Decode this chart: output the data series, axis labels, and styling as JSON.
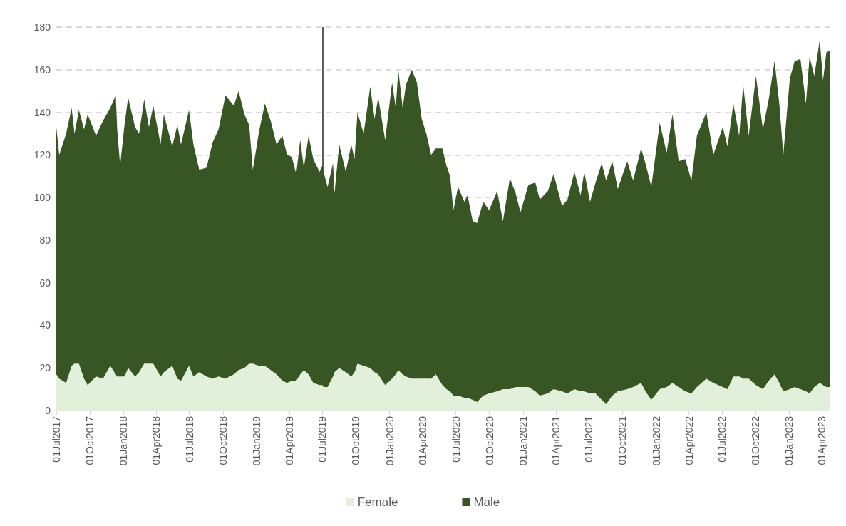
{
  "chart_data": {
    "type": "area",
    "stacked": true,
    "grid": "y",
    "legend": "bottom",
    "marker": "none",
    "x": [
      "2017-07-01",
      "2017-07-09",
      "2017-07-28",
      "2017-08-12",
      "2017-08-20",
      "2017-09-01",
      "2017-09-15",
      "2017-09-25",
      "2017-10-18",
      "2017-11-06",
      "2017-11-26",
      "2017-12-11",
      "2017-12-15",
      "2017-12-23",
      "2018-01-04",
      "2018-01-14",
      "2018-02-02",
      "2018-02-13",
      "2018-02-27",
      "2018-03-12",
      "2018-03-24",
      "2018-04-13",
      "2018-04-22",
      "2018-05-15",
      "2018-05-29",
      "2018-06-08",
      "2018-06-30",
      "2018-07-12",
      "2018-07-28",
      "2018-08-17",
      "2018-09-03",
      "2018-09-19",
      "2018-10-08",
      "2018-10-31",
      "2018-11-13",
      "2018-11-29",
      "2018-12-12",
      "2018-12-22",
      "2019-01-08",
      "2019-01-24",
      "2019-02-09",
      "2019-02-25",
      "2019-03-13",
      "2019-03-26",
      "2019-04-08",
      "2019-04-20",
      "2019-05-01",
      "2019-05-11",
      "2019-05-24",
      "2019-06-06",
      "2019-06-23",
      "2019-07-01",
      "2019-07-04",
      "2019-07-15",
      "2019-07-30",
      "2019-08-03",
      "2019-08-16",
      "2019-09-03",
      "2019-09-18",
      "2019-09-27",
      "2019-10-05",
      "2019-10-22",
      "2019-11-09",
      "2019-11-21",
      "2019-12-01",
      "2019-12-20",
      "2020-01-08",
      "2020-01-18",
      "2020-01-25",
      "2020-02-06",
      "2020-02-15",
      "2020-03-02",
      "2020-03-16",
      "2020-03-29",
      "2020-04-11",
      "2020-04-24",
      "2020-05-07",
      "2020-05-25",
      "2020-06-05",
      "2020-06-15",
      "2020-06-24",
      "2020-07-07",
      "2020-07-24",
      "2020-08-02",
      "2020-08-16",
      "2020-08-28",
      "2020-09-14",
      "2020-09-30",
      "2020-10-22",
      "2020-11-07",
      "2020-11-26",
      "2020-12-12",
      "2020-12-25",
      "2021-01-16",
      "2021-02-04",
      "2021-02-16",
      "2021-03-10",
      "2021-03-26",
      "2021-04-18",
      "2021-05-03",
      "2021-05-22",
      "2021-06-08",
      "2021-06-18",
      "2021-07-04",
      "2021-07-19",
      "2021-08-05",
      "2021-08-17",
      "2021-09-03",
      "2021-09-18",
      "2021-10-14",
      "2021-10-30",
      "2021-11-21",
      "2021-12-03",
      "2021-12-19",
      "2022-01-11",
      "2022-01-30",
      "2022-02-15",
      "2022-03-04",
      "2022-03-22",
      "2022-04-08",
      "2022-04-23",
      "2022-05-19",
      "2022-06-07",
      "2022-07-03",
      "2022-07-16",
      "2022-08-01",
      "2022-08-17",
      "2022-08-28",
      "2022-09-12",
      "2022-10-02",
      "2022-10-21",
      "2022-11-06",
      "2022-11-22",
      "2022-12-05",
      "2022-12-16",
      "2023-01-03",
      "2023-01-16",
      "2023-02-01",
      "2023-02-16",
      "2023-02-26",
      "2023-03-11",
      "2023-03-26",
      "2023-04-04",
      "2023-04-13",
      "2023-04-22"
    ],
    "series": [
      {
        "name": "Female",
        "color": "#e2efda",
        "values": [
          17,
          15,
          13,
          21,
          22,
          22,
          15,
          12,
          16,
          15,
          21,
          17,
          16,
          16,
          16,
          20,
          16,
          18,
          22,
          22,
          22,
          16,
          18,
          21,
          15,
          14,
          21,
          16,
          18,
          16,
          15,
          16,
          15,
          17,
          19,
          20,
          22,
          22,
          21,
          21,
          19,
          17,
          14,
          13,
          14,
          14,
          17,
          19,
          17,
          13,
          12,
          12,
          11,
          11,
          16,
          18,
          20,
          18,
          16,
          18,
          22,
          21,
          20,
          18,
          17,
          12,
          15,
          17,
          19,
          17,
          16,
          15,
          15,
          15,
          15,
          15,
          17,
          12,
          10,
          9,
          7,
          7,
          6,
          6,
          5,
          4,
          7,
          8,
          9,
          10,
          10,
          11,
          11,
          11,
          9,
          7,
          8,
          10,
          9,
          8,
          10,
          9,
          9,
          8,
          8,
          5,
          3,
          7,
          9,
          10,
          11,
          13,
          9,
          5,
          10,
          11,
          13,
          11,
          9,
          8,
          11,
          15,
          13,
          11,
          10,
          16,
          16,
          15,
          15,
          12,
          10,
          14,
          17,
          13,
          9,
          10,
          11,
          10,
          9,
          8,
          11,
          13,
          12,
          11,
          11
        ]
      },
      {
        "name": "Male",
        "color": "#375623",
        "values": [
          116,
          105,
          117,
          121,
          108,
          119,
          117,
          127,
          113,
          121,
          121,
          131,
          116,
          99,
          118,
          127,
          117,
          112,
          124,
          111,
          121,
          109,
          121,
          103,
          119,
          111,
          120,
          109,
          95,
          98,
          111,
          116,
          133,
          126,
          131,
          119,
          112,
          91,
          110,
          123,
          117,
          108,
          115,
          107,
          105,
          97,
          110,
          95,
          112,
          105,
          100,
          103,
          101,
          94,
          100,
          84,
          105,
          94,
          109,
          100,
          118,
          109,
          132,
          119,
          130,
          115,
          139,
          125,
          141,
          125,
          137,
          145,
          139,
          122,
          115,
          105,
          106,
          111,
          105,
          101,
          87,
          98,
          92,
          95,
          84,
          84,
          91,
          86,
          94,
          79,
          99,
          91,
          82,
          95,
          98,
          92,
          95,
          101,
          87,
          91,
          102,
          92,
          103,
          90,
          99,
          111,
          105,
          110,
          95,
          107,
          97,
          110,
          107,
          100,
          125,
          110,
          126,
          106,
          109,
          100,
          118,
          125,
          107,
          122,
          114,
          128,
          113,
          138,
          114,
          145,
          122,
          132,
          147,
          131,
          111,
          146,
          153,
          155,
          135,
          158,
          146,
          161,
          143,
          157,
          158
        ]
      }
    ],
    "xlim": [
      "2017-07-01",
      "2023-04-22"
    ],
    "xticks": [
      {
        "value": "2017-07-01",
        "label": "01Jul2017"
      },
      {
        "value": "2017-10-01",
        "label": "01Oct2017"
      },
      {
        "value": "2018-01-01",
        "label": "01Jan2018"
      },
      {
        "value": "2018-04-01",
        "label": "01Apr2018"
      },
      {
        "value": "2018-07-01",
        "label": "01Jul2018"
      },
      {
        "value": "2018-10-01",
        "label": "01Oct2018"
      },
      {
        "value": "2019-01-01",
        "label": "01Jan2019"
      },
      {
        "value": "2019-04-01",
        "label": "01Apr2019"
      },
      {
        "value": "2019-07-01",
        "label": "01Jul2019"
      },
      {
        "value": "2019-10-01",
        "label": "01Oct2019"
      },
      {
        "value": "2020-01-01",
        "label": "01Jan2020"
      },
      {
        "value": "2020-04-01",
        "label": "01Apr2020"
      },
      {
        "value": "2020-07-01",
        "label": "01Jul2020"
      },
      {
        "value": "2020-10-01",
        "label": "01Oct2020"
      },
      {
        "value": "2021-01-01",
        "label": "01Jan2021"
      },
      {
        "value": "2021-04-01",
        "label": "01Apr2021"
      },
      {
        "value": "2021-07-01",
        "label": "01Jul2021"
      },
      {
        "value": "2021-10-01",
        "label": "01Oct2021"
      },
      {
        "value": "2022-01-01",
        "label": "01Jan2022"
      },
      {
        "value": "2022-04-01",
        "label": "01Apr2022"
      },
      {
        "value": "2022-07-01",
        "label": "01Jul2022"
      },
      {
        "value": "2022-10-01",
        "label": "01Oct2022"
      },
      {
        "value": "2023-01-01",
        "label": "01Jan2023"
      },
      {
        "value": "2023-04-01",
        "label": "01Apr2023"
      }
    ],
    "ylim": [
      0,
      180
    ],
    "yticks": [
      0,
      20,
      40,
      60,
      80,
      100,
      120,
      140,
      160,
      180
    ],
    "ref_lines": [
      {
        "axis": "x",
        "value": "2019-07-01",
        "label": null,
        "color": "#262626",
        "line_style": "solid"
      }
    ]
  }
}
